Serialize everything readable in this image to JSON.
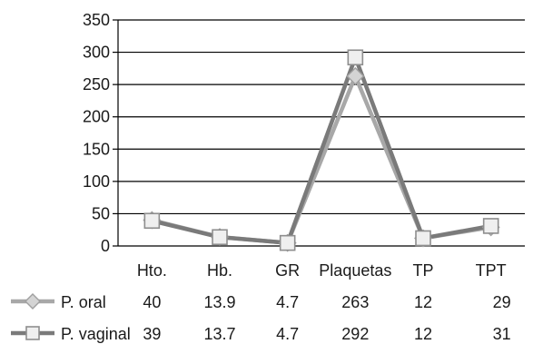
{
  "chart_data": {
    "type": "line",
    "title": "",
    "xlabel": "",
    "ylabel": "",
    "ylim": [
      0,
      350
    ],
    "yticks": [
      0,
      50,
      100,
      150,
      200,
      250,
      300,
      350
    ],
    "grid": true,
    "legend_position": "bottom-left (data table)",
    "categories": [
      "Hto.",
      "Hb.",
      "GR",
      "Plaquetas",
      "TP",
      "TPT"
    ],
    "series": [
      {
        "name": "P. oral",
        "values": [
          40,
          13.9,
          4.7,
          263,
          12,
          29
        ],
        "value_labels": [
          "40",
          "13.9",
          "4.7",
          "263",
          "12",
          "29"
        ],
        "marker": "diamond",
        "color": "#a8a8a8"
      },
      {
        "name": "P. vaginal",
        "values": [
          39,
          13.7,
          4.7,
          292,
          12,
          31
        ],
        "value_labels": [
          "39",
          "13.7",
          "4.7",
          "292",
          "12",
          "31"
        ],
        "marker": "square",
        "color": "#7a7a7a"
      }
    ]
  }
}
